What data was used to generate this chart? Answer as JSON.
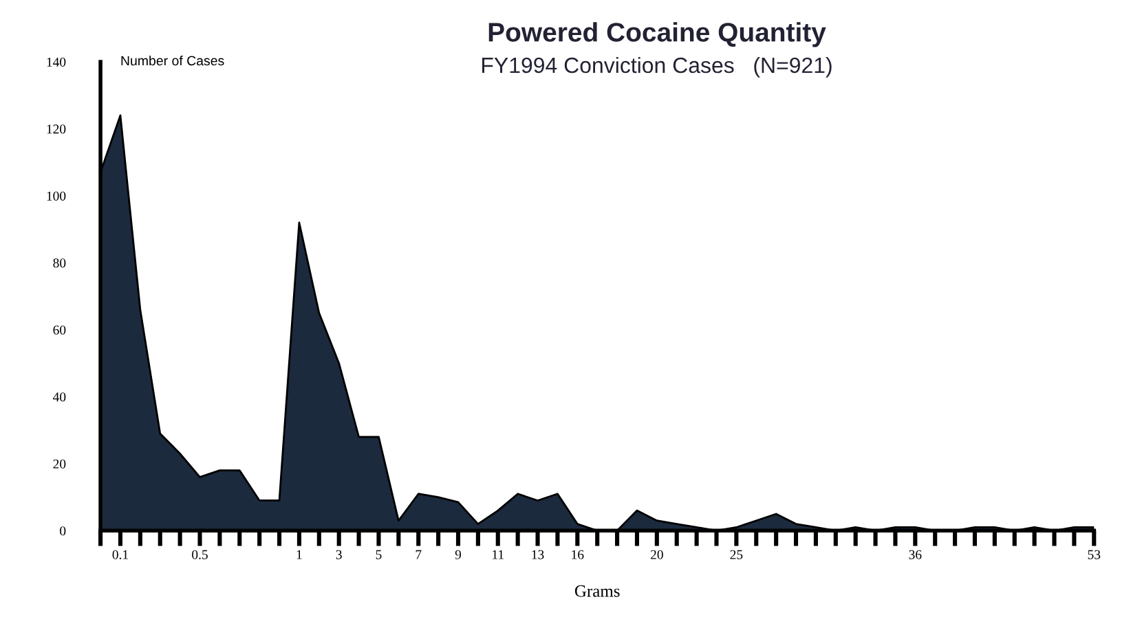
{
  "chart_data": {
    "type": "area",
    "title": "Powered Cocaine Quantity",
    "subtitle": "FY1994 Conviction Cases   (N=921)",
    "ylabel": "Number of Cases",
    "xlabel": "Grams",
    "categories": [
      null,
      "0.1",
      null,
      null,
      null,
      "0.5",
      null,
      null,
      null,
      null,
      "1",
      null,
      "3",
      null,
      "5",
      null,
      "7",
      null,
      "9",
      null,
      "11",
      null,
      "13",
      null,
      "16",
      null,
      null,
      null,
      "20",
      null,
      null,
      null,
      "25",
      null,
      null,
      null,
      null,
      null,
      null,
      null,
      null,
      "36",
      null,
      null,
      null,
      null,
      null,
      null,
      null,
      null,
      "53"
    ],
    "values": [
      107,
      124,
      66,
      29,
      23,
      16,
      18,
      18,
      9,
      9,
      92,
      65,
      50,
      28,
      28,
      3,
      11,
      10,
      8.5,
      2,
      6,
      11,
      9,
      11,
      2,
      0,
      0,
      6,
      3,
      2,
      1,
      0,
      1,
      3,
      5,
      2,
      1,
      0,
      1,
      0,
      1,
      1,
      0,
      0,
      1,
      1,
      0,
      1,
      0,
      1,
      1
    ],
    "color": "#1c2a3e",
    "ylim": [
      0,
      140
    ],
    "yticks": [
      0,
      20,
      40,
      60,
      80,
      100,
      120,
      140
    ],
    "grid": false,
    "legend": false
  }
}
